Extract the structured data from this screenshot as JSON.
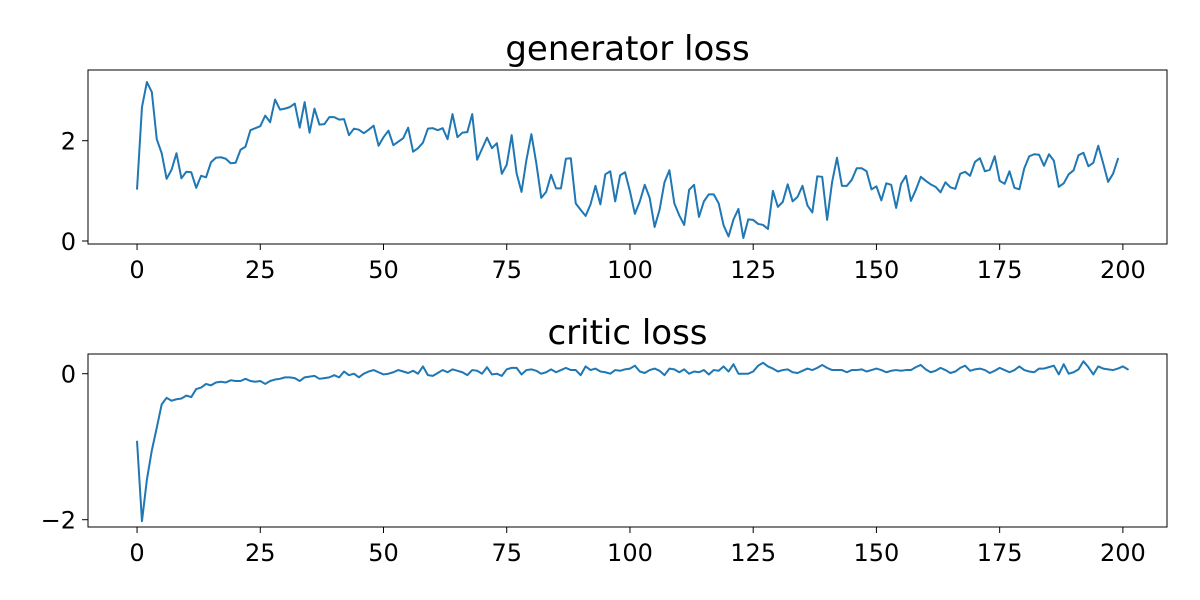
{
  "chart_data": [
    {
      "type": "line",
      "title": "generator loss",
      "xlabel": "",
      "ylabel": "",
      "xlim": [
        -9.95,
        208.95
      ],
      "ylim": [
        -0.06,
        3.41
      ],
      "xticks": [
        0,
        25,
        50,
        75,
        100,
        125,
        150,
        175,
        200
      ],
      "yticks": [
        0,
        2
      ],
      "xtick_labels": [
        "0",
        "25",
        "50",
        "75",
        "100",
        "125",
        "150",
        "175",
        "200"
      ],
      "ytick_labels": [
        "0",
        "2"
      ],
      "grid": false,
      "color": "#1f77b4",
      "series": [
        {
          "values": [
            1.04,
            2.67,
            3.17,
            2.97,
            2.03,
            1.75,
            1.24,
            1.42,
            1.75,
            1.25,
            1.38,
            1.37,
            1.06,
            1.3,
            1.27,
            1.57,
            1.66,
            1.67,
            1.64,
            1.55,
            1.56,
            1.82,
            1.88,
            2.21,
            2.25,
            2.29,
            2.5,
            2.37,
            2.82,
            2.62,
            2.64,
            2.67,
            2.74,
            2.26,
            2.77,
            2.16,
            2.64,
            2.32,
            2.33,
            2.47,
            2.47,
            2.42,
            2.43,
            2.11,
            2.24,
            2.22,
            2.15,
            2.22,
            2.3,
            1.9,
            2.07,
            2.2,
            1.91,
            1.98,
            2.05,
            2.26,
            1.78,
            1.85,
            1.96,
            2.24,
            2.25,
            2.21,
            2.25,
            2.03,
            2.53,
            2.07,
            2.16,
            2.17,
            2.53,
            1.62,
            1.84,
            2.06,
            1.85,
            1.95,
            1.34,
            1.52,
            2.11,
            1.35,
            0.98,
            1.62,
            2.13,
            1.55,
            0.86,
            0.98,
            1.32,
            1.05,
            1.05,
            1.64,
            1.65,
            0.75,
            0.62,
            0.5,
            0.73,
            1.1,
            0.73,
            1.33,
            1.39,
            0.79,
            1.31,
            1.37,
            0.99,
            0.54,
            0.79,
            1.12,
            0.86,
            0.28,
            0.62,
            1.17,
            1.41,
            0.75,
            0.51,
            0.32,
            1.02,
            1.12,
            0.48,
            0.79,
            0.93,
            0.93,
            0.75,
            0.31,
            0.09,
            0.43,
            0.64,
            0.06,
            0.43,
            0.42,
            0.34,
            0.32,
            0.24,
            1.0,
            0.68,
            0.78,
            1.13,
            0.79,
            0.88,
            1.1,
            0.71,
            0.57,
            1.29,
            1.28,
            0.42,
            1.17,
            1.66,
            1.1,
            1.1,
            1.22,
            1.45,
            1.45,
            1.39,
            1.03,
            1.09,
            0.81,
            1.15,
            1.12,
            0.66,
            1.14,
            1.3,
            0.8,
            1.02,
            1.28,
            1.2,
            1.13,
            1.08,
            0.97,
            1.17,
            1.07,
            1.04,
            1.34,
            1.38,
            1.3,
            1.58,
            1.65,
            1.39,
            1.42,
            1.69,
            1.2,
            1.14,
            1.39,
            1.06,
            1.03,
            1.45,
            1.69,
            1.73,
            1.72,
            1.5,
            1.73,
            1.6,
            1.08,
            1.15,
            1.33,
            1.41,
            1.71,
            1.76,
            1.49,
            1.56,
            1.9,
            1.55,
            1.18,
            1.34,
            1.64
          ]
        }
      ]
    },
    {
      "type": "line",
      "title": "critic loss",
      "xlabel": "",
      "ylabel": "",
      "xlim": [
        -9.95,
        208.95
      ],
      "ylim": [
        -2.1,
        0.27
      ],
      "xticks": [
        0,
        25,
        50,
        75,
        100,
        125,
        150,
        175,
        200
      ],
      "yticks": [
        -2,
        0
      ],
      "xtick_labels": [
        "0",
        "25",
        "50",
        "75",
        "100",
        "125",
        "150",
        "175",
        "200"
      ],
      "ytick_labels": [
        "−2",
        "0"
      ],
      "grid": false,
      "color": "#1f77b4",
      "series": [
        {
          "values": [
            -0.93,
            -2.02,
            -1.45,
            -1.05,
            -0.74,
            -0.42,
            -0.33,
            -0.37,
            -0.35,
            -0.34,
            -0.3,
            -0.32,
            -0.21,
            -0.19,
            -0.14,
            -0.16,
            -0.12,
            -0.11,
            -0.12,
            -0.09,
            -0.1,
            -0.1,
            -0.07,
            -0.1,
            -0.11,
            -0.1,
            -0.14,
            -0.1,
            -0.08,
            -0.07,
            -0.05,
            -0.05,
            -0.06,
            -0.1,
            -0.05,
            -0.04,
            -0.03,
            -0.07,
            -0.06,
            -0.05,
            -0.02,
            -0.05,
            0.03,
            -0.02,
            0.0,
            -0.05,
            0.0,
            0.03,
            0.05,
            0.02,
            -0.01,
            0.0,
            0.02,
            0.05,
            0.03,
            0.01,
            0.04,
            0.0,
            0.1,
            -0.02,
            -0.03,
            0.01,
            0.05,
            0.02,
            0.06,
            0.04,
            0.02,
            -0.02,
            0.05,
            0.04,
            0.0,
            0.09,
            -0.01,
            0.0,
            -0.03,
            0.06,
            0.08,
            0.08,
            -0.01,
            0.05,
            0.06,
            0.04,
            0.0,
            0.02,
            0.06,
            0.02,
            0.05,
            0.08,
            0.05,
            0.05,
            -0.02,
            0.1,
            0.05,
            0.07,
            0.03,
            0.02,
            0.0,
            0.05,
            0.04,
            0.06,
            0.07,
            0.11,
            0.03,
            0.01,
            0.05,
            0.07,
            0.04,
            -0.02,
            0.07,
            0.06,
            0.02,
            0.06,
            0.0,
            0.03,
            0.02,
            0.05,
            -0.01,
            0.05,
            0.04,
            0.1,
            0.03,
            0.13,
            0.0,
            0.0,
            0.0,
            0.03,
            0.11,
            0.15,
            0.1,
            0.07,
            0.03,
            0.05,
            0.06,
            0.02,
            0.01,
            0.04,
            0.07,
            0.05,
            0.08,
            0.12,
            0.08,
            0.05,
            0.05,
            0.05,
            0.02,
            0.05,
            0.05,
            0.06,
            0.03,
            0.05,
            0.07,
            0.05,
            0.02,
            0.04,
            0.05,
            0.04,
            0.05,
            0.05,
            0.09,
            0.12,
            0.06,
            0.02,
            0.04,
            0.08,
            0.05,
            0.01,
            0.03,
            0.08,
            0.11,
            0.04,
            0.06,
            0.07,
            0.05,
            0.01,
            0.04,
            0.08,
            0.05,
            0.02,
            0.05,
            0.1,
            0.05,
            0.03,
            0.02,
            0.07,
            0.07,
            0.09,
            0.11,
            -0.01,
            0.13,
            0.0,
            0.02,
            0.06,
            0.17,
            0.09,
            -0.01,
            0.1,
            0.07,
            0.06,
            0.05,
            0.07,
            0.1,
            0.06
          ]
        }
      ]
    }
  ]
}
